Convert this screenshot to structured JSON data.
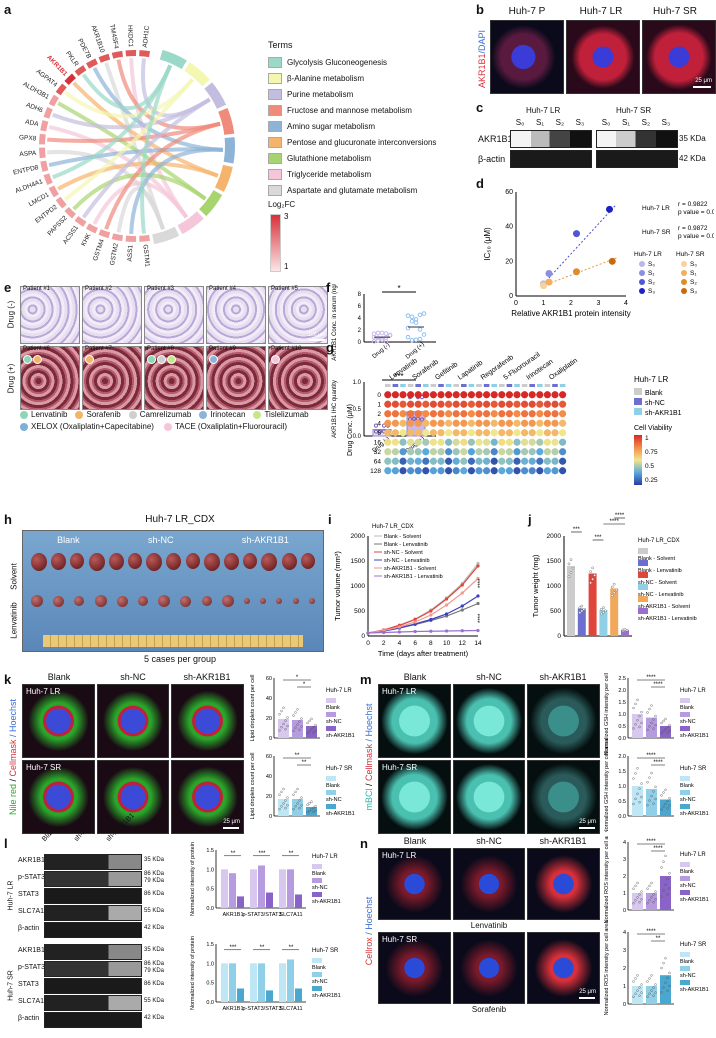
{
  "panels": {
    "a": "a",
    "b": "b",
    "c": "c",
    "d": "d",
    "e": "e",
    "f": "f",
    "g": "g",
    "h": "h",
    "i": "i",
    "j": "j",
    "k": "k",
    "l": "l",
    "m": "m",
    "n": "n"
  },
  "a": {
    "genes": [
      "ADH1C",
      "HKDC1",
      "TM4SF4",
      "AKR1B10",
      "PDE7B",
      "PKLR",
      "AKR1B1",
      "AGPAT4",
      "ALDH3B1",
      "ADH6",
      "ADA",
      "GPX8",
      "ASPA",
      "ENTPD8",
      "ALDH4A1",
      "LMCD1",
      "ENTPD2",
      "PAPSS2",
      "ACSS1",
      "KHK",
      "GSTM4",
      "GSTM2",
      "ASS1",
      "GSTM1"
    ],
    "highlight": "AKR1B1",
    "terms_title": "Terms",
    "terms": [
      {
        "label": "Glycolysis Gluconeogenesis",
        "color": "#9ad8c8"
      },
      {
        "label": "β-Alanine metabolism",
        "color": "#f3f7b0"
      },
      {
        "label": "Purine metabolism",
        "color": "#c3bde0"
      },
      {
        "label": "Fructose and mannose metabolism",
        "color": "#f08a7a"
      },
      {
        "label": "Amino sugar metabolism",
        "color": "#8db4d6"
      },
      {
        "label": "Pentose and glucuronate interconversions",
        "color": "#f6b36b"
      },
      {
        "label": "Glutathione metabolism",
        "color": "#a8d46f"
      },
      {
        "label": "Triglyceride metabolism",
        "color": "#f5c6d9"
      },
      {
        "label": "Aspartate and glutamate metabolism",
        "color": "#d9d9d9"
      }
    ],
    "logfc_title": "Log₂FC",
    "logfc_max": "3",
    "logfc_min": "1"
  },
  "b": {
    "ylabel_1": "AKR1B1",
    "ylabel_2": "/DAPI",
    "titles": [
      "Huh-7 P",
      "Huh-7 LR",
      "Huh-7 SR"
    ],
    "scale": "25 μm"
  },
  "c": {
    "groups": [
      "Huh-7 LR",
      "Huh-7 SR"
    ],
    "lanes": [
      "S₀",
      "S₁",
      "S₂",
      "S₃"
    ],
    "rows": [
      "AKR1B1",
      "β-actin"
    ],
    "kda": [
      "35 KDa",
      "42 KDa"
    ]
  },
  "d": {
    "ylabel": "IC₅₀ (μM)",
    "xlabel": "Relative AKR1B1 protein intensity",
    "yticks": [
      "0",
      "20",
      "40",
      "60"
    ],
    "xticks": [
      "0",
      "1",
      "2",
      "3",
      "4"
    ],
    "lr_r": "r = 0.9822",
    "lr_p": "p value = 0.0178",
    "sr_r": "r = 0.9872",
    "sr_p": "p value = 0.0128",
    "lr_name": "Huh-7 LR",
    "sr_name": "Huh-7 SR",
    "legend_lanes": [
      "S₀",
      "S₁",
      "S₂",
      "S₃"
    ]
  },
  "chart_data": [
    {
      "type": "scatter",
      "panel": "d",
      "xlabel": "Relative AKR1B1 protein intensity",
      "ylabel": "IC₅₀ (μM)",
      "xlim": [
        0,
        4
      ],
      "ylim": [
        0,
        60
      ],
      "series": [
        {
          "name": "Huh-7 LR",
          "color_points": [
            "#b7b9e6",
            "#8a8fe0",
            "#5156d6",
            "#1c22c4"
          ],
          "x": [
            1.0,
            1.2,
            2.2,
            3.4
          ],
          "y": [
            7,
            13,
            36,
            50
          ]
        },
        {
          "name": "Huh-7 SR",
          "color_points": [
            "#f7d2a0",
            "#f0b060",
            "#e08a2a",
            "#c86a10"
          ],
          "x": [
            1.0,
            1.2,
            2.2,
            3.5
          ],
          "y": [
            6,
            8,
            14,
            20
          ]
        }
      ]
    },
    {
      "type": "scatter",
      "panel": "f-top",
      "ylabel": "AKR1B1 Conc. in serum (ng/ml)",
      "categories": [
        "Drug (-)",
        "Drug (+)"
      ],
      "ylim": [
        0,
        8
      ],
      "yticks": [
        "0",
        "2",
        "4",
        "6",
        "8"
      ],
      "means": [
        0.8,
        2.5
      ],
      "significance": "*"
    },
    {
      "type": "bar",
      "panel": "f-bottom",
      "ylabel": "AKR1B1 IHC quantity",
      "categories": [
        "Drug (-)",
        "Drug (+)"
      ],
      "values": [
        0.12,
        0.45
      ],
      "ylim": [
        0,
        1.0
      ],
      "yticks": [
        "0.0",
        "0.5",
        "1.0"
      ],
      "significance": "***"
    },
    {
      "type": "line",
      "panel": "i",
      "title": "Huh-7 LR_CDX",
      "xlabel": "Time (days after treatment)",
      "ylabel": "Tumor volume (mm³)",
      "x": [
        0,
        2,
        4,
        6,
        8,
        10,
        12,
        14
      ],
      "ylim": [
        0,
        2000
      ],
      "yticks": [
        "0",
        "500",
        "1000",
        "1500",
        "2000"
      ],
      "series": [
        {
          "name": "Blank - Solvent",
          "color": "#bbbbbb",
          "values": [
            60,
            120,
            220,
            340,
            520,
            760,
            1050,
            1450
          ]
        },
        {
          "name": "Blank - Lenvatinib",
          "color": "#777777",
          "values": [
            60,
            100,
            160,
            230,
            310,
            400,
            520,
            650
          ]
        },
        {
          "name": "sh-NC - Solvent",
          "color": "#e0453c",
          "values": [
            60,
            120,
            210,
            330,
            500,
            740,
            1020,
            1400
          ]
        },
        {
          "name": "sh-NC - Lenvatinib",
          "color": "#3a3fc0",
          "values": [
            60,
            100,
            160,
            240,
            330,
            440,
            600,
            800
          ]
        },
        {
          "name": "sh-AKR1B1 - Solvent",
          "color": "#f29a8a",
          "values": [
            60,
            110,
            180,
            280,
            420,
            620,
            860,
            1150
          ]
        },
        {
          "name": "sh-AKR1B1 - Lenvatinib",
          "color": "#9b6fd0",
          "values": [
            60,
            70,
            80,
            90,
            95,
            100,
            105,
            110
          ]
        }
      ],
      "significance": [
        "****",
        "****"
      ]
    },
    {
      "type": "bar",
      "panel": "j",
      "title": "Huh-7 LR_CDX",
      "ylabel": "Tumor weight (mg)",
      "ylim": [
        0,
        2000
      ],
      "yticks": [
        "0",
        "500",
        "1000",
        "1500",
        "2000"
      ],
      "categories": [
        "Blank - Solvent",
        "Blank - Lenvatinib",
        "sh-NC - Solvent",
        "sh-NC - Lenvatinib",
        "sh-AKR1B1 - Solvent",
        "sh-AKR1B1 - Lenvatinib"
      ],
      "values": [
        1400,
        550,
        1250,
        520,
        950,
        120
      ],
      "colors": [
        "#cccccc",
        "#6c6fcf",
        "#e0453c",
        "#8fd0e6",
        "#f2a85a",
        "#9b6fd0"
      ],
      "significance": [
        "***",
        "***",
        "****",
        "****"
      ]
    },
    {
      "type": "bar",
      "panel": "k-top",
      "ylabel": "Lipid droplets count per cell",
      "categories": [
        "Blank",
        "sh-NC",
        "sh-AKR1B1"
      ],
      "values": [
        19,
        18,
        12
      ],
      "ylim": [
        0,
        60
      ],
      "yticks": [
        "0",
        "20",
        "40",
        "60"
      ],
      "significance": [
        "*",
        "*"
      ]
    },
    {
      "type": "bar",
      "panel": "k-bottom",
      "ylabel": "Lipid droplets count per cell",
      "categories": [
        "Blank",
        "sh-NC",
        "sh-AKR1B1"
      ],
      "values": [
        17,
        17,
        9
      ],
      "ylim": [
        0,
        60
      ],
      "yticks": [
        "0",
        "20",
        "40",
        "60"
      ],
      "significance": [
        "**",
        "**"
      ]
    },
    {
      "type": "bar",
      "panel": "l-top",
      "ylabel": "Normalized intensity of protein",
      "categories": [
        "AKR1B1",
        "p-STAT3/STAT3",
        "SLC7A11"
      ],
      "series": [
        {
          "name": "Blank",
          "values": [
            1.0,
            1.0,
            1.0
          ]
        },
        {
          "name": "sh-NC",
          "values": [
            0.9,
            1.1,
            1.0
          ]
        },
        {
          "name": "sh-AKR1B1",
          "values": [
            0.3,
            0.4,
            0.35
          ]
        }
      ],
      "ylim": [
        0,
        1.5
      ],
      "yticks": [
        "0.0",
        "0.5",
        "1.0",
        "1.5"
      ],
      "significance": [
        "**",
        "***",
        "**"
      ]
    },
    {
      "type": "bar",
      "panel": "l-bottom",
      "ylabel": "Normalized intensity of protein",
      "categories": [
        "AKR1B1",
        "p-STAT3/STAT3",
        "SLC7A11"
      ],
      "series": [
        {
          "name": "Blank",
          "values": [
            1.0,
            1.0,
            1.0
          ]
        },
        {
          "name": "sh-NC",
          "values": [
            1.0,
            1.0,
            1.1
          ]
        },
        {
          "name": "sh-AKR1B1",
          "values": [
            0.35,
            0.3,
            0.35
          ]
        }
      ],
      "ylim": [
        0,
        1.5
      ],
      "yticks": [
        "0.0",
        "0.5",
        "1.0",
        "1.5"
      ],
      "significance": [
        "***",
        "**",
        "**"
      ]
    },
    {
      "type": "bar",
      "panel": "m-top",
      "ylabel": "Normalized GSH intensity per cell area",
      "categories": [
        "Blank",
        "sh-NC",
        "sh-AKR1B1"
      ],
      "values": [
        1.0,
        0.85,
        0.5
      ],
      "ylim": [
        0,
        2.5
      ],
      "yticks": [
        "0.0",
        "0.5",
        "1.0",
        "1.5",
        "2.0",
        "2.5"
      ],
      "significance": [
        "****",
        "****"
      ]
    },
    {
      "type": "bar",
      "panel": "m-bottom",
      "ylabel": "Normalized GSH intensity per cell area",
      "categories": [
        "Blank",
        "sh-NC",
        "sh-AKR1B1"
      ],
      "values": [
        1.0,
        0.9,
        0.55
      ],
      "ylim": [
        0,
        2.0
      ],
      "yticks": [
        "0.0",
        "0.5",
        "1.0",
        "1.5",
        "2.0"
      ],
      "significance": [
        "****",
        "****"
      ]
    },
    {
      "type": "bar",
      "panel": "n-top",
      "ylabel": "Normalized ROS intensity per cell area",
      "categories": [
        "Blank",
        "sh-NC",
        "sh-AKR1B1"
      ],
      "values": [
        1.0,
        1.0,
        2.0
      ],
      "ylim": [
        0,
        4
      ],
      "yticks": [
        "0",
        "1",
        "2",
        "3",
        "4"
      ],
      "significance": [
        "****",
        "****"
      ]
    },
    {
      "type": "bar",
      "panel": "n-bottom",
      "ylabel": "Normalized ROS intensity per cell area",
      "categories": [
        "Blank",
        "sh-NC",
        "sh-AKR1B1"
      ],
      "values": [
        1.0,
        1.0,
        1.6
      ],
      "ylim": [
        0,
        4
      ],
      "yticks": [
        "0",
        "1",
        "2",
        "3",
        "4"
      ],
      "significance": [
        "****",
        "**"
      ]
    }
  ],
  "e": {
    "row1": "Drug (-)",
    "row2": "Drug (+)",
    "patients_top": [
      "Patient #1",
      "Patient #2",
      "Patient #3",
      "Patient #4",
      "Patient #5"
    ],
    "patients_bottom": [
      "Patient #6",
      "Patient #7",
      "Patient #8",
      "Patient #9",
      "Patient #10"
    ],
    "scale": "100 μm",
    "drugs": [
      {
        "label": "Lenvatinib",
        "color": "#8fd6b8"
      },
      {
        "label": "Sorafenib",
        "color": "#f2b36b"
      },
      {
        "label": "Camrelizumab",
        "color": "#cfcfcf"
      },
      {
        "label": "Irinotecan",
        "color": "#8db4d6"
      },
      {
        "label": "Tislelizumab",
        "color": "#c7e68a"
      }
    ],
    "drugs2": [
      {
        "label": "XELOX (Oxaliplatin+Capecitabine)",
        "color": "#7fb0d8"
      },
      {
        "label": "TACE (Oxaliplatin+Fluorouracil)",
        "color": "#f5c6d9"
      }
    ]
  },
  "f": {
    "top_ylabel": "AKR1B1 Conc. in serum (ng/ml)",
    "bottom_ylabel": "AKR1B1 IHC quantity",
    "cats": [
      "Drug (-)",
      "Drug (+)"
    ],
    "top_sig": "*",
    "bottom_sig": "***"
  },
  "g": {
    "drugs": [
      "Lenvatinib",
      "Sorafenib",
      "Gefitinib",
      "Lapatinib",
      "Regorafenib",
      "5-Fluorouracil",
      "Irinotecan",
      "Oxaliplatin"
    ],
    "ylabel": "Drug Conc. (μM)",
    "concs": [
      "0",
      "1",
      "2",
      "4",
      "8",
      "16",
      "32",
      "64",
      "128"
    ],
    "legend_title": "Huh-7 LR",
    "legend": [
      {
        "label": "Blank",
        "color": "#cccccc"
      },
      {
        "label": "sh-NC",
        "color": "#6c6fcf"
      },
      {
        "label": "sh-AKR1B1",
        "color": "#8fd0e6"
      }
    ],
    "cv_title": "Cell Viability",
    "cv_ticks": [
      "1",
      "0.75",
      "0.5",
      "0.25"
    ]
  },
  "h": {
    "title": "Huh-7 LR_CDX",
    "groups": [
      "Blank",
      "sh-NC",
      "sh-AKR1B1"
    ],
    "rows": [
      "Solvent",
      "Lenvatinib"
    ],
    "caption": "5 cases per group"
  },
  "i": {
    "title": "Huh-7 LR_CDX",
    "xlabel": "Time (days after treatment)",
    "ylabel": "Tumor volume (mm³)",
    "xticks": [
      "0",
      "2",
      "4",
      "6",
      "8",
      "10",
      "12",
      "14"
    ],
    "yticks": [
      "0",
      "500",
      "1000",
      "1500",
      "2000"
    ],
    "legend": [
      "Blank - Solvent",
      "Blank - Lenvatinib",
      "sh-NC - Solvent",
      "sh-NC - Lenvatinib",
      "sh-AKR1B1 - Solvent",
      "sh-AKR1B1 - Lenvatinib"
    ]
  },
  "j": {
    "title": "Huh-7 LR_CDX",
    "ylabel": "Tumor weight (mg)",
    "yticks": [
      "0",
      "500",
      "1000",
      "1500",
      "2000"
    ],
    "legend": [
      "Blank - Solvent",
      "Blank - Lenvatinib",
      "sh-NC - Solvent",
      "sh-NC - Lenvatinib",
      "sh-AKR1B1 - Solvent",
      "sh-AKR1B1 - Lenvatinib"
    ],
    "sig": [
      "***",
      "***",
      "****",
      "****"
    ]
  },
  "k": {
    "cols": [
      "Blank",
      "sh-NC",
      "sh-AKR1B1"
    ],
    "row1": "Huh-7 LR",
    "row2": "Huh-7 SR",
    "stain_1": "Nile red",
    "stain_2": " / ",
    "stain_3": "Cellmask",
    "stain_4": " / Hoechst",
    "scale": "25 μm",
    "ylabel": "Lipid droplets count per cell",
    "leg_title_1": "Huh-7 LR",
    "leg_title_2": "Huh-7 SR",
    "legend": [
      "Blank",
      "sh-NC",
      "sh-AKR1B1"
    ],
    "yticks": [
      "0",
      "20",
      "40",
      "60"
    ],
    "sig_top": [
      "*",
      "*"
    ],
    "sig_bottom": [
      "**",
      "**"
    ]
  },
  "l": {
    "cols": [
      "Blank",
      "sh-NC",
      "sh-AKR1B1"
    ],
    "side_1": "Huh-7 LR",
    "side_2": "Huh-7 SR",
    "rows": [
      "AKR1B1",
      "p-STAT3",
      "STAT3",
      "SLC7A11",
      "β-actin"
    ],
    "kda": [
      "35 KDa",
      "86 KDa",
      "79 KDa",
      "86 KDa",
      "55 KDa",
      "42 KDa"
    ],
    "ylabel": "Normalized intensity of protein",
    "cats": [
      "AKR1B1",
      "p-STAT3/STAT3",
      "SLC7A11"
    ],
    "leg_title_1": "Huh-7 LR",
    "leg_title_2": "Huh-7 SR",
    "legend": [
      "Blank",
      "sh-NC",
      "sh-AKR1B1"
    ],
    "yticks": [
      "0.0",
      "0.5",
      "1.0",
      "1.5"
    ],
    "sig_top": [
      "**",
      "***",
      "**"
    ],
    "sig_bottom": [
      "***",
      "**",
      "**"
    ]
  },
  "m": {
    "cols": [
      "Blank",
      "sh-NC",
      "sh-AKR1B1"
    ],
    "row1": "Huh-7 LR",
    "row2": "Huh-7 SR",
    "stain_1": "mBCl",
    "stain_2": " / ",
    "stain_3": "Cellmask",
    "stain_4": " / Hoechst",
    "scale": "25 μm",
    "ylabel": "Normalized GSH intensity per cell area",
    "leg_title_1": "Huh-7 LR",
    "leg_title_2": "Huh-7 SR",
    "legend": [
      "Blank",
      "sh-NC",
      "sh-AKR1B1"
    ],
    "yticks_top": [
      "0.0",
      "0.5",
      "1.0",
      "1.5",
      "2.0",
      "2.5"
    ],
    "yticks_bottom": [
      "0.0",
      "0.5",
      "1.0",
      "1.5",
      "2.0"
    ],
    "sig_top": [
      "****",
      "****"
    ],
    "sig_bottom": [
      "****",
      "****"
    ]
  },
  "n": {
    "cols": [
      "Blank",
      "sh-NC",
      "sh-AKR1B1"
    ],
    "row1": "Huh-7 LR",
    "row2": "Huh-7 SR",
    "drug1": "Lenvatinib",
    "drug2": "Sorafenib",
    "stain_1": "Cellrox",
    "stain_2": " / Hoechst",
    "scale": "25 μm",
    "ylabel": "Normalized ROS intensity per cell area",
    "leg_title_1": "Huh-7 LR",
    "leg_title_2": "Huh-7 SR",
    "legend": [
      "Blank",
      "sh-NC",
      "sh-AKR1B1"
    ],
    "yticks": [
      "0",
      "1",
      "2",
      "3",
      "4"
    ],
    "sig_top": [
      "****",
      "****"
    ],
    "sig_bottom": [
      "****",
      "**"
    ]
  }
}
